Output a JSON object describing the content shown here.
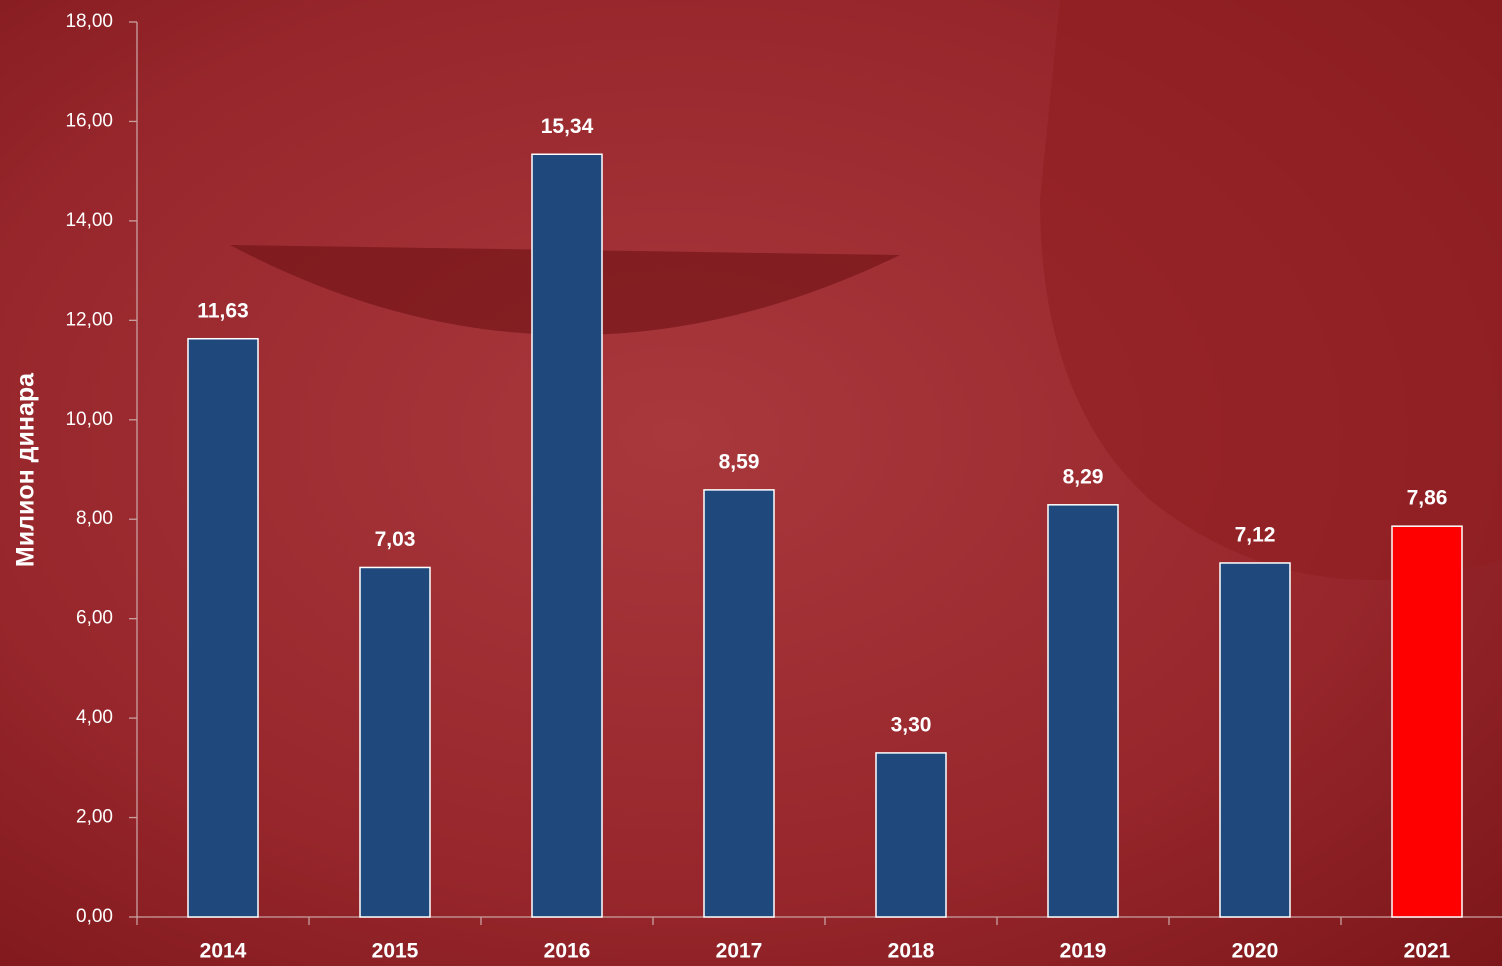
{
  "chart_data": {
    "type": "bar",
    "y_label": "Милион динара",
    "categories": [
      "2014",
      "2015",
      "2016",
      "2017",
      "2018",
      "2019",
      "2020",
      "2021"
    ],
    "values": [
      11.63,
      7.03,
      15.34,
      8.59,
      3.3,
      8.29,
      7.12,
      7.86
    ],
    "value_labels": [
      "11,63",
      "7,03",
      "15,34",
      "8,59",
      "3,30",
      "8,29",
      "7,12",
      "7,86"
    ],
    "colors": [
      "#1f497d",
      "#1f497d",
      "#1f497d",
      "#1f497d",
      "#1f497d",
      "#1f497d",
      "#1f497d",
      "#ff0000"
    ],
    "ylim": [
      0,
      18
    ],
    "yticks": [
      {
        "value": 0,
        "label": "0,00"
      },
      {
        "value": 2,
        "label": "2,00"
      },
      {
        "value": 4,
        "label": "4,00"
      },
      {
        "value": 6,
        "label": "6,00"
      },
      {
        "value": 8,
        "label": "8,00"
      },
      {
        "value": 10,
        "label": "10,00"
      },
      {
        "value": 12,
        "label": "12,00"
      },
      {
        "value": 14,
        "label": "14,00"
      },
      {
        "value": 16,
        "label": "16,00"
      },
      {
        "value": 18,
        "label": "18,00"
      }
    ],
    "grid": false
  }
}
